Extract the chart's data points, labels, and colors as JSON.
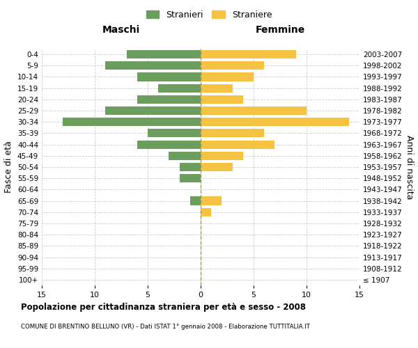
{
  "age_groups": [
    "100+",
    "95-99",
    "90-94",
    "85-89",
    "80-84",
    "75-79",
    "70-74",
    "65-69",
    "60-64",
    "55-59",
    "50-54",
    "45-49",
    "40-44",
    "35-39",
    "30-34",
    "25-29",
    "20-24",
    "15-19",
    "10-14",
    "5-9",
    "0-4"
  ],
  "birth_years": [
    "≤ 1907",
    "1908-1912",
    "1913-1917",
    "1918-1922",
    "1923-1927",
    "1928-1932",
    "1933-1937",
    "1938-1942",
    "1943-1947",
    "1948-1952",
    "1953-1957",
    "1958-1962",
    "1963-1967",
    "1968-1972",
    "1973-1977",
    "1978-1982",
    "1983-1987",
    "1988-1992",
    "1993-1997",
    "1998-2002",
    "2003-2007"
  ],
  "males": [
    0,
    0,
    0,
    0,
    0,
    0,
    0,
    1,
    0,
    2,
    2,
    3,
    6,
    5,
    13,
    9,
    6,
    4,
    6,
    9,
    7
  ],
  "females": [
    0,
    0,
    0,
    0,
    0,
    0,
    1,
    2,
    0,
    0,
    3,
    4,
    7,
    6,
    14,
    10,
    4,
    3,
    5,
    6,
    9
  ],
  "male_color": "#6b9e5e",
  "female_color": "#f5c242",
  "background_color": "#ffffff",
  "grid_color": "#cccccc",
  "xlim": 15,
  "title": "Popolazione per cittadinanza straniera per età e sesso - 2008",
  "subtitle": "COMUNE DI BRENTINO BELLUNO (VR) - Dati ISTAT 1° gennaio 2008 - Elaborazione TUTTITALIA.IT",
  "xlabel_left": "Maschi",
  "xlabel_right": "Femmine",
  "ylabel_left": "Fasce di età",
  "ylabel_right": "Anni di nascita",
  "legend_male": "Stranieri",
  "legend_female": "Straniere"
}
